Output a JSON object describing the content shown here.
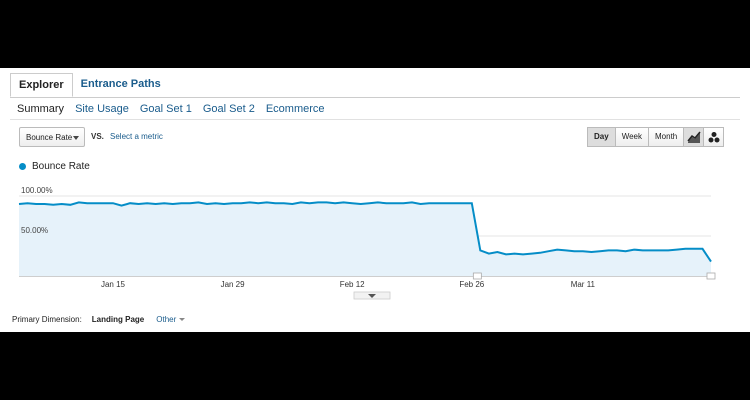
{
  "tabs": [
    {
      "label": "Explorer",
      "active": true
    },
    {
      "label": "Entrance Paths",
      "active": false
    }
  ],
  "subnav": [
    {
      "label": "Summary",
      "current": true
    },
    {
      "label": "Site Usage",
      "current": false
    },
    {
      "label": "Goal Set 1",
      "current": false
    },
    {
      "label": "Goal Set 2",
      "current": false
    },
    {
      "label": "Ecommerce",
      "current": false
    }
  ],
  "metric": {
    "selected": "Bounce Rate",
    "vs": "VS.",
    "compare_link": "Select a metric"
  },
  "period": {
    "day": "Day",
    "week": "Week",
    "month": "Month",
    "selected": "Day"
  },
  "view_icons": [
    "line-chart-icon",
    "motion-chart-icon"
  ],
  "legend": {
    "label": "Bounce Rate",
    "color": "#058dc7"
  },
  "chart_data": {
    "type": "area",
    "series": [
      {
        "name": "Bounce Rate",
        "color": "#058dc7",
        "values": [
          90,
          91,
          90,
          90,
          89,
          90,
          89,
          92,
          91,
          91,
          91,
          91,
          88,
          91,
          90,
          91,
          90,
          91,
          90,
          91,
          91,
          92,
          90,
          91,
          90,
          91,
          91,
          92,
          91,
          92,
          91,
          91,
          90,
          92,
          91,
          92,
          92,
          91,
          92,
          91,
          90,
          91,
          92,
          91,
          91,
          91,
          92,
          90,
          91,
          91,
          91,
          91,
          91,
          91,
          32,
          28,
          30,
          27,
          28,
          27,
          28,
          29,
          31,
          33,
          32,
          31,
          31,
          30,
          31,
          32,
          32,
          31,
          33,
          32,
          32,
          32,
          32,
          33,
          34,
          34,
          34,
          18
        ]
      }
    ],
    "x_ticks": [
      {
        "label": "Jan 15",
        "index": 11
      },
      {
        "label": "Jan 29",
        "index": 25
      },
      {
        "label": "Feb 12",
        "index": 39
      },
      {
        "label": "Feb 26",
        "index": 53
      },
      {
        "label": "Mar 11",
        "index": 66
      }
    ],
    "y_ticks": [
      {
        "label": "100.00%",
        "value": 100
      },
      {
        "label": "50.00%",
        "value": 50
      }
    ],
    "ylim": [
      0,
      100
    ],
    "grid": true
  },
  "dimension": {
    "label": "Primary Dimension:",
    "value": "Landing Page",
    "other": "Other"
  }
}
